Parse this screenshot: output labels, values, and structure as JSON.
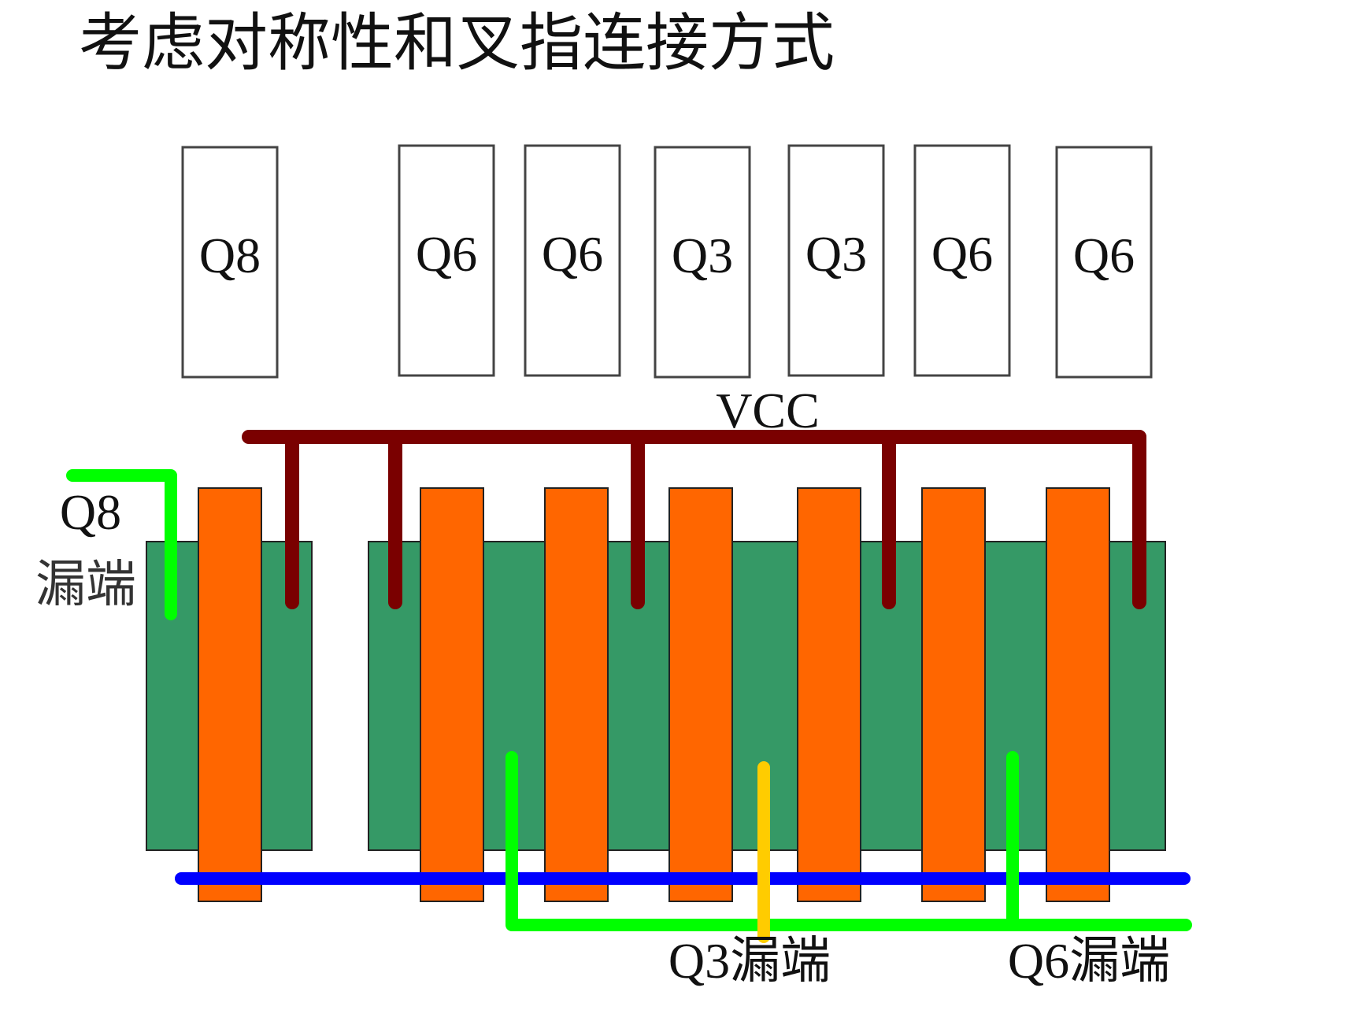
{
  "title": "考虑对称性和叉指连接方式",
  "transistor_boxes": [
    "Q8",
    "Q6",
    "Q6",
    "Q3",
    "Q3",
    "Q6",
    "Q6"
  ],
  "labels": {
    "vcc": "VCC",
    "q8_prefix": "Q8",
    "q8_suffix": "漏端",
    "q3_drain": "Q3漏端",
    "q6_drain": "Q6漏端"
  },
  "colors": {
    "active_region": "#359966",
    "gate": "#ff6600",
    "vcc_line": "#7a0000",
    "blue_line": "#0000ff",
    "green_line": "#00ff00",
    "yellow_line": "#ffcc00"
  }
}
